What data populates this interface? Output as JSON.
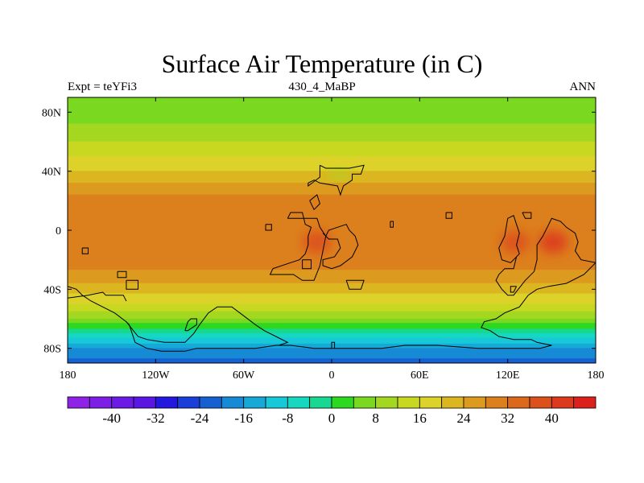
{
  "header": {
    "title": "Surface Air Temperature (in C)",
    "left_string": "Expt = teYFi3",
    "center_string": "430_4_MaBP",
    "right_string": "ANN"
  },
  "map": {
    "projection": "cylindrical equidistant",
    "lon_range": [
      -180,
      180
    ],
    "lat_range": [
      -90,
      90
    ],
    "x_ticks": [
      {
        "value": -180,
        "label": "180"
      },
      {
        "value": -120,
        "label": "120W"
      },
      {
        "value": -60,
        "label": "60W"
      },
      {
        "value": 0,
        "label": "0"
      },
      {
        "value": 60,
        "label": "60E"
      },
      {
        "value": 120,
        "label": "120E"
      },
      {
        "value": 180,
        "label": "180"
      }
    ],
    "y_ticks": [
      {
        "value": 80,
        "label": "80N"
      },
      {
        "value": 40,
        "label": "40N"
      },
      {
        "value": 0,
        "label": "0"
      },
      {
        "value": -40,
        "label": "40S"
      },
      {
        "value": -80,
        "label": "80S"
      }
    ],
    "zonal_mean_temperature": [
      {
        "lat": 90,
        "t": 6
      },
      {
        "lat": 75,
        "t": 7
      },
      {
        "lat": 60,
        "t": 12
      },
      {
        "lat": 50,
        "t": 16
      },
      {
        "lat": 40,
        "t": 20
      },
      {
        "lat": 30,
        "t": 25
      },
      {
        "lat": 20,
        "t": 30
      },
      {
        "lat": 0,
        "t": 32
      },
      {
        "lat": -20,
        "t": 30
      },
      {
        "lat": -30,
        "t": 27
      },
      {
        "lat": -40,
        "t": 22
      },
      {
        "lat": -50,
        "t": 16
      },
      {
        "lat": -60,
        "t": 8
      },
      {
        "lat": -70,
        "t": -4
      },
      {
        "lat": -80,
        "t": -16
      },
      {
        "lat": -90,
        "t": -22
      }
    ],
    "warm_regions": [
      {
        "lon": 151,
        "lat": -8,
        "t": 41
      },
      {
        "lon": -10,
        "lat": -8,
        "t": 38
      },
      {
        "lon": 125,
        "lat": -8,
        "t": 38
      }
    ],
    "cold_regions": [
      {
        "lon": 5,
        "lat": 38,
        "t": 8
      }
    ],
    "coastlines": [
      [
        [
          -30,
          8
        ],
        [
          -28,
          12
        ],
        [
          -20,
          12
        ],
        [
          -18,
          4
        ],
        [
          -14,
          2
        ],
        [
          -16,
          -4
        ],
        [
          -16,
          -10
        ],
        [
          -18,
          -16
        ],
        [
          -22,
          -20
        ],
        [
          -28,
          -22
        ],
        [
          -40,
          -26
        ],
        [
          -42,
          -30
        ],
        [
          -26,
          -30
        ],
        [
          -20,
          -34
        ],
        [
          -12,
          -34
        ],
        [
          -8,
          -24
        ],
        [
          -6,
          -14
        ],
        [
          -4,
          -4
        ],
        [
          -8,
          2
        ],
        [
          -10,
          8
        ],
        [
          -18,
          8
        ],
        [
          -30,
          8
        ]
      ],
      [
        [
          -15,
          20
        ],
        [
          -10,
          24
        ],
        [
          -8,
          18
        ],
        [
          -12,
          14
        ],
        [
          -15,
          20
        ]
      ],
      [
        [
          -45,
          4
        ],
        [
          -41,
          4
        ],
        [
          -41,
          0
        ],
        [
          -45,
          0
        ],
        [
          -45,
          4
        ]
      ],
      [
        [
          -20,
          -20
        ],
        [
          -14,
          -20
        ],
        [
          -14,
          -26
        ],
        [
          -20,
          -26
        ],
        [
          -20,
          -20
        ]
      ],
      [
        [
          -4,
          -4
        ],
        [
          -2,
          0
        ],
        [
          4,
          2
        ],
        [
          10,
          4
        ],
        [
          12,
          0
        ],
        [
          16,
          -4
        ],
        [
          18,
          -10
        ],
        [
          14,
          -18
        ],
        [
          6,
          -24
        ],
        [
          0,
          -26
        ],
        [
          -6,
          -24
        ],
        [
          -6,
          -20
        ],
        [
          2,
          -18
        ],
        [
          6,
          -12
        ],
        [
          4,
          -6
        ],
        [
          -2,
          -6
        ],
        [
          -6,
          -2
        ],
        [
          -4,
          -4
        ]
      ],
      [
        [
          10,
          -34
        ],
        [
          12,
          -40
        ],
        [
          20,
          -40
        ],
        [
          22,
          -34
        ],
        [
          10,
          -34
        ]
      ],
      [
        [
          40,
          6
        ],
        [
          42,
          6
        ],
        [
          42,
          2
        ],
        [
          40,
          2
        ],
        [
          40,
          6
        ]
      ],
      [
        [
          78,
          12
        ],
        [
          82,
          12
        ],
        [
          82,
          8
        ],
        [
          78,
          8
        ],
        [
          78,
          12
        ]
      ],
      [
        [
          -8,
          44
        ],
        [
          -4,
          42
        ],
        [
          4,
          42
        ],
        [
          12,
          42
        ],
        [
          22,
          44
        ],
        [
          20,
          38
        ],
        [
          14,
          38
        ],
        [
          14,
          34
        ],
        [
          8,
          30
        ],
        [
          6,
          24
        ],
        [
          4,
          30
        ],
        [
          -8,
          32
        ],
        [
          -12,
          34
        ],
        [
          -16,
          32
        ],
        [
          -16,
          30
        ],
        [
          -8,
          36
        ],
        [
          -8,
          44
        ]
      ],
      [
        [
          120,
          8
        ],
        [
          124,
          10
        ],
        [
          126,
          4
        ],
        [
          128,
          -2
        ],
        [
          126,
          -10
        ],
        [
          128,
          -16
        ],
        [
          124,
          -20
        ],
        [
          122,
          -22
        ],
        [
          116,
          -20
        ],
        [
          114,
          -12
        ],
        [
          118,
          -4
        ],
        [
          120,
          8
        ]
      ],
      [
        [
          126,
          -18
        ],
        [
          124,
          -26
        ],
        [
          118,
          -26
        ],
        [
          114,
          -30
        ],
        [
          112,
          -34
        ],
        [
          116,
          -40
        ],
        [
          120,
          -44
        ],
        [
          124,
          -44
        ],
        [
          132,
          -34
        ],
        [
          138,
          -28
        ],
        [
          140,
          -20
        ],
        [
          140,
          -10
        ],
        [
          144,
          -4
        ],
        [
          148,
          4
        ],
        [
          150,
          8
        ],
        [
          156,
          6
        ],
        [
          160,
          2
        ],
        [
          166,
          -2
        ],
        [
          168,
          -8
        ],
        [
          166,
          -14
        ],
        [
          170,
          -20
        ],
        [
          180,
          -22
        ]
      ],
      [
        [
          126,
          -38
        ],
        [
          124,
          -42
        ],
        [
          122,
          -42
        ],
        [
          122,
          -38
        ],
        [
          126,
          -38
        ]
      ],
      [
        [
          130,
          12
        ],
        [
          136,
          12
        ],
        [
          136,
          8
        ],
        [
          132,
          8
        ],
        [
          130,
          12
        ]
      ],
      [
        [
          180,
          -22
        ],
        [
          172,
          -30
        ],
        [
          160,
          -36
        ],
        [
          148,
          -38
        ],
        [
          140,
          -40
        ],
        [
          134,
          -44
        ],
        [
          128,
          -52
        ],
        [
          118,
          -56
        ],
        [
          112,
          -60
        ],
        [
          104,
          -62
        ],
        [
          102,
          -66
        ],
        [
          108,
          -68
        ],
        [
          114,
          -72
        ],
        [
          124,
          -74
        ],
        [
          136,
          -74
        ],
        [
          140,
          -76
        ],
        [
          150,
          -78
        ],
        [
          142,
          -80
        ],
        [
          100,
          -80
        ],
        [
          72,
          -78
        ],
        [
          62,
          -78
        ],
        [
          50,
          -78
        ],
        [
          34,
          -80
        ],
        [
          10,
          -80
        ],
        [
          -12,
          -80
        ],
        [
          -28,
          -78
        ],
        [
          -38,
          -78
        ],
        [
          -52,
          -80
        ],
        [
          -82,
          -80
        ],
        [
          -92,
          -80
        ],
        [
          -100,
          -82
        ],
        [
          -116,
          -82
        ],
        [
          -126,
          -80
        ],
        [
          -134,
          -76
        ],
        [
          -136,
          -70
        ],
        [
          -138,
          -64
        ],
        [
          -140,
          -62
        ],
        [
          -148,
          -56
        ],
        [
          -156,
          -52
        ],
        [
          -164,
          -48
        ],
        [
          -170,
          -44
        ],
        [
          -174,
          -40
        ],
        [
          -180,
          -38
        ]
      ],
      [
        [
          -140,
          -62
        ],
        [
          -132,
          -72
        ],
        [
          -126,
          -74
        ],
        [
          -114,
          -76
        ],
        [
          -100,
          -76
        ],
        [
          -94,
          -70
        ],
        [
          -90,
          -64
        ],
        [
          -84,
          -56
        ],
        [
          -78,
          -52
        ],
        [
          -68,
          -52
        ],
        [
          -60,
          -58
        ],
        [
          -52,
          -64
        ],
        [
          -46,
          -68
        ],
        [
          -38,
          -72
        ],
        [
          -30,
          -76
        ],
        [
          -36,
          -78
        ]
      ],
      [
        [
          -100,
          -68
        ],
        [
          -98,
          -62
        ],
        [
          -96,
          -60
        ],
        [
          -92,
          -60
        ],
        [
          -92,
          -64
        ],
        [
          -98,
          -68
        ],
        [
          -100,
          -68
        ]
      ],
      [
        [
          -170,
          -12
        ],
        [
          -166,
          -12
        ],
        [
          -166,
          -16
        ],
        [
          -170,
          -16
        ],
        [
          -170,
          -12
        ]
      ],
      [
        [
          -146,
          -28
        ],
        [
          -140,
          -28
        ],
        [
          -140,
          -32
        ],
        [
          -146,
          -32
        ],
        [
          -146,
          -28
        ]
      ],
      [
        [
          -140,
          -34
        ],
        [
          -132,
          -34
        ],
        [
          -132,
          -40
        ],
        [
          -140,
          -40
        ],
        [
          -140,
          -34
        ]
      ],
      [
        [
          -180,
          -46
        ],
        [
          -166,
          -44
        ],
        [
          -156,
          -42
        ],
        [
          -154,
          -44
        ],
        [
          -142,
          -44
        ],
        [
          -140,
          -48
        ]
      ],
      [
        [
          0,
          -80
        ],
        [
          0,
          -76
        ],
        [
          2,
          -76
        ],
        [
          2,
          -80
        ]
      ]
    ]
  },
  "colorbar": {
    "min": -48,
    "max": 48,
    "step": 4,
    "labels": [
      "-40",
      "-32",
      "-24",
      "-16",
      "-8",
      "0",
      "8",
      "16",
      "24",
      "32",
      "40"
    ],
    "label_values": [
      -40,
      -32,
      -24,
      -16,
      -8,
      0,
      8,
      16,
      24,
      32,
      40
    ],
    "colors": [
      "#8e22e6",
      "#7d1ee6",
      "#6c1ae6",
      "#5a16e3",
      "#2318de",
      "#1a3ed8",
      "#1660d2",
      "#168ad4",
      "#16a8d6",
      "#16c8d8",
      "#16d8c0",
      "#16d890",
      "#2cd820",
      "#7ad820",
      "#a4d820",
      "#c8d820",
      "#dcd22a",
      "#dcb620",
      "#dc9a1e",
      "#dc801e",
      "#dc681c",
      "#dc501c",
      "#dc3a1c",
      "#dc201c"
    ]
  }
}
